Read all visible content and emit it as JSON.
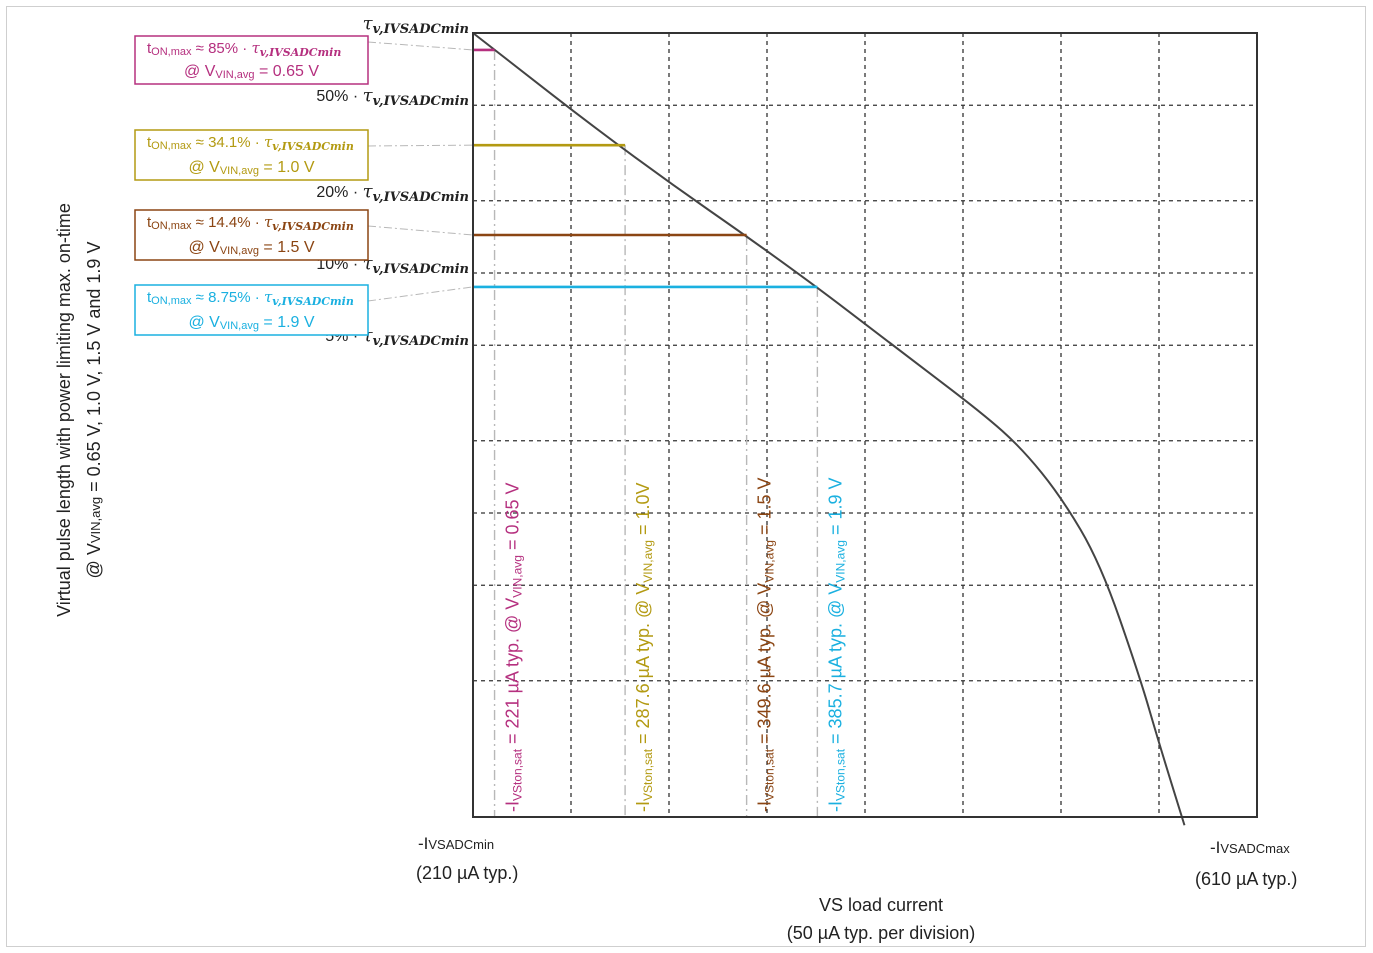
{
  "chart_data": {
    "type": "line",
    "xlabel": "VS load current",
    "xlabel_sub": "(50 µA typ. per division)",
    "ylabel_line1": "Virtual pulse length with power limiting max. on-time",
    "ylabel_line2_prefix": "@ V",
    "ylabel_line2_sub": "VIN,avg",
    "ylabel_line2_suffix": " = 0.65 V, 1.0 V, 1.5 V and 1.9 V",
    "xlim": [
      210,
      610
    ],
    "x_div": 50,
    "x_tick_left_main": "-I",
    "x_tick_left_sub": "VSADCmin",
    "x_tick_left_note": "(210 µA typ.)",
    "x_tick_right_main": "-I",
    "x_tick_right_sub": "VSADCmax",
    "x_tick_right_note": "(610 µA typ.)",
    "y_scale": "log",
    "y_ticks": [
      {
        "frac": 1.0,
        "prefix": "",
        "sym": "τ",
        "sub": "v,IVSADCmin"
      },
      {
        "frac": 0.5,
        "prefix": "50% · ",
        "sym": "τ",
        "sub": "v,IVSADCmin"
      },
      {
        "frac": 0.2,
        "prefix": "20% · ",
        "sym": "τ",
        "sub": "v,IVSADCmin"
      },
      {
        "frac": 0.1,
        "prefix": "10% · ",
        "sym": "τ",
        "sub": "v,IVSADCmin"
      },
      {
        "frac": 0.05,
        "prefix": "5% · ",
        "sym": "τ",
        "sub": "v,IVSADCmin"
      }
    ],
    "curve": [
      [
        210,
        1.0
      ],
      [
        290,
        0.31
      ],
      [
        372,
        0.106
      ],
      [
        430,
        0.046
      ],
      [
        470,
        0.026
      ],
      [
        490,
        0.0186
      ],
      [
        510,
        0.0117
      ],
      [
        530,
        0.0062
      ],
      [
        550,
        0.0021
      ],
      [
        560,
        0.0011
      ],
      [
        573,
        0.0005
      ]
    ],
    "series": [
      {
        "color": "#b5307f",
        "box_top": "t",
        "box_top_sub": "ON,max",
        "box_top_rest": " ≈ 85% · ",
        "box_tau": "τ",
        "box_tau_sub": "v,IVSADCmin",
        "box_bottom_prefix": "@ V",
        "box_bottom_sub": "VIN,avg",
        "box_bottom_suffix": " = 0.65 V",
        "y_frac": 0.85,
        "x_sat": 221,
        "vlabel_a": "-I",
        "vlabel_sub": "VSton,sat",
        "vlabel_b": " = 221 µA typ. @ V",
        "vlabel_sub2": "VIN,avg",
        "vlabel_c": " = 0.65 V"
      },
      {
        "color": "#b39a12",
        "box_top": "t",
        "box_top_sub": "ON,max",
        "box_top_rest": " ≈ 34.1% · ",
        "box_tau": "τ",
        "box_tau_sub": "v,IVSADCmin",
        "box_bottom_prefix": "@ V",
        "box_bottom_sub": "VIN,avg",
        "box_bottom_suffix": " = 1.0 V",
        "y_frac": 0.341,
        "x_sat": 287.6,
        "vlabel_a": "-I",
        "vlabel_sub": "VSton,sat",
        "vlabel_b": " = 287.6 µA typ. @ V",
        "vlabel_sub2": "VIN,avg",
        "vlabel_c": " = 1.0V"
      },
      {
        "color": "#8b4513",
        "box_top": "t",
        "box_top_sub": "ON,max",
        "box_top_rest": " ≈ 14.4% · ",
        "box_tau": "τ",
        "box_tau_sub": "v,IVSADCmin",
        "box_bottom_prefix": "@ V",
        "box_bottom_sub": "VIN,avg",
        "box_bottom_suffix": " = 1.5 V",
        "y_frac": 0.144,
        "x_sat": 349.6,
        "vlabel_a": "-I",
        "vlabel_sub": "VSton,sat",
        "vlabel_b": " = 349.6 µA typ. @ V",
        "vlabel_sub2": "VIN,avg",
        "vlabel_c": " = 1.5 V"
      },
      {
        "color": "#1ab0e0",
        "box_top": "t",
        "box_top_sub": "ON,max",
        "box_top_rest": " ≈ 8.75% · ",
        "box_tau": "τ",
        "box_tau_sub": "v,IVSADCmin",
        "box_bottom_prefix": "@ V",
        "box_bottom_sub": "VIN,avg",
        "box_bottom_suffix": " = 1.9 V",
        "y_frac": 0.0875,
        "x_sat": 385.7,
        "vlabel_a": "-I",
        "vlabel_sub": "VSton,sat",
        "vlabel_b": " = 385.7 µA typ. @ V",
        "vlabel_sub2": "VIN,avg",
        "vlabel_c": " = 1.9 V"
      }
    ],
    "grid": true,
    "colors": {
      "axis": "#333333",
      "grid": "#333333",
      "curve": "#444444",
      "guide": "#b8b8b8"
    }
  }
}
